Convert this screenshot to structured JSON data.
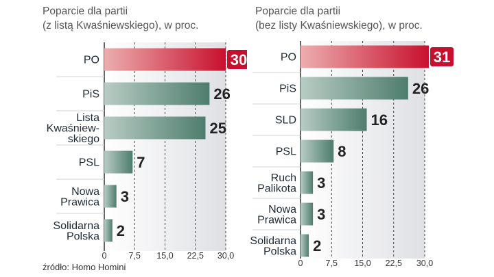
{
  "source": "źródło: Homo Homini",
  "chart_data": [
    {
      "type": "bar",
      "orientation": "horizontal",
      "title_line1": "Poparcie dla partii",
      "title_line2": "(z listą Kwaśniewskiego), w proc.",
      "categories": [
        [
          "PO"
        ],
        [
          "PiS"
        ],
        [
          "Lista",
          "Kwaśniew-",
          "skiego"
        ],
        [
          "PSL"
        ],
        [
          "Nowa",
          "Prawica"
        ],
        [
          "Solidarna",
          "Polska"
        ]
      ],
      "values": [
        30,
        26,
        25,
        7,
        3,
        2
      ],
      "value_labels": [
        "30",
        "26",
        "25",
        "7",
        "3",
        "2"
      ],
      "highlight_index": 0,
      "xticks": [
        "0",
        "7,5",
        "15,0",
        "22,5",
        "30,0"
      ],
      "xlim": [
        0,
        30
      ],
      "grid": true,
      "colors": {
        "highlight": "#c8102e",
        "normal": "#5b8a7a"
      }
    },
    {
      "type": "bar",
      "orientation": "horizontal",
      "title_line1": "Poparcie dla partii",
      "title_line2": "(bez listy Kwaśniewskiego), w proc.",
      "categories": [
        [
          "PO"
        ],
        [
          "PiS"
        ],
        [
          "SLD"
        ],
        [
          "PSL"
        ],
        [
          "Ruch",
          "Palikota"
        ],
        [
          "Nowa",
          "Prawica"
        ],
        [
          "Solidarna",
          "Polska"
        ]
      ],
      "values": [
        31,
        26,
        16,
        8,
        3,
        3,
        2
      ],
      "value_labels": [
        "31",
        "26",
        "16",
        "8",
        "3",
        "3",
        "2"
      ],
      "highlight_index": 0,
      "xticks": [
        "0",
        "7,5",
        "15,0",
        "22,5",
        "30,0"
      ],
      "xlim": [
        0,
        30
      ],
      "grid": true,
      "colors": {
        "highlight": "#c8102e",
        "normal": "#5b8a7a"
      }
    }
  ]
}
